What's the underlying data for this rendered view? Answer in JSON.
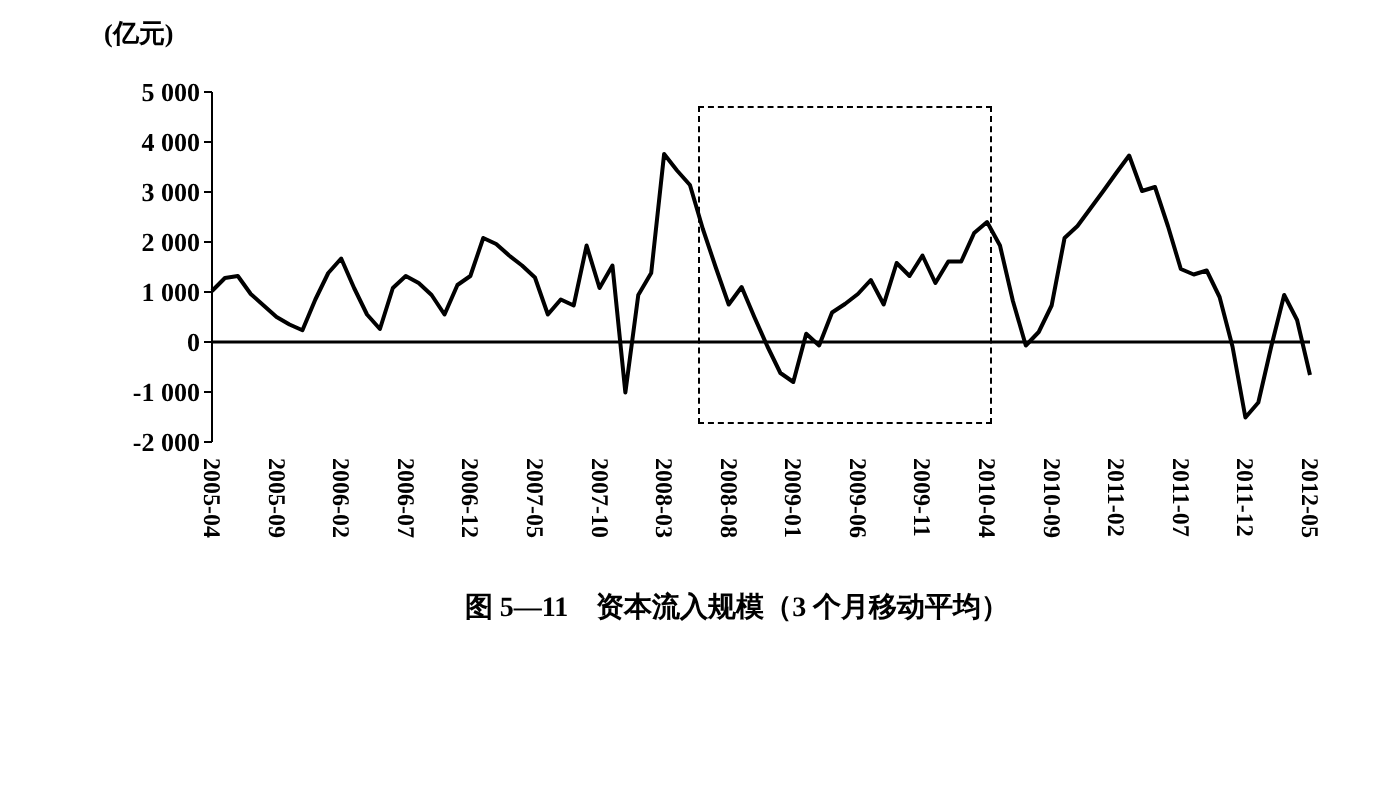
{
  "chart_data": {
    "type": "line",
    "title": "图 5—11　资本流入规模（3 个月移动平均）",
    "ylabel": "(亿元)",
    "categories": [
      "2005-04",
      null,
      null,
      null,
      null,
      "2005-09",
      null,
      null,
      null,
      null,
      "2006-02",
      null,
      null,
      null,
      null,
      "2006-07",
      null,
      null,
      null,
      null,
      "2006-12",
      null,
      null,
      null,
      null,
      "2007-05",
      null,
      null,
      null,
      null,
      "2007-10",
      null,
      null,
      null,
      null,
      "2008-03",
      null,
      null,
      null,
      null,
      "2008-08",
      null,
      null,
      null,
      null,
      "2009-01",
      null,
      null,
      null,
      null,
      "2009-06",
      null,
      null,
      null,
      null,
      "2009-11",
      null,
      null,
      null,
      null,
      "2010-04",
      null,
      null,
      null,
      null,
      "2010-09",
      null,
      null,
      null,
      null,
      "2011-02",
      null,
      null,
      null,
      null,
      "2011-07",
      null,
      null,
      null,
      null,
      "2011-12",
      null,
      null,
      null,
      null,
      "2012-05"
    ],
    "series": [
      {
        "color": "#000000",
        "values": [
          1020,
          1280,
          1320,
          960,
          730,
          500,
          350,
          235,
          850,
          1380,
          1670,
          1080,
          550,
          260,
          1080,
          1320,
          1180,
          940,
          550,
          1140,
          1320,
          2080,
          1960,
          1730,
          1530,
          1290,
          550,
          850,
          730,
          1930,
          1080,
          1530,
          -1010,
          940,
          1380,
          3760,
          3430,
          3140,
          2260,
          1490,
          750,
          1100,
          490,
          -90,
          -620,
          -800,
          165,
          -70,
          590,
          760,
          960,
          1240,
          750,
          1580,
          1320,
          1730,
          1180,
          1610,
          1610,
          2180,
          2400,
          1930,
          820,
          -70,
          200,
          730,
          2080,
          2320,
          2670,
          3020,
          3380,
          3730,
          3020,
          3100,
          2320,
          1460,
          1350,
          1430,
          900,
          -90,
          -1510,
          -1210,
          -90,
          940,
          440,
          -660
        ]
      }
    ],
    "ylim": [
      -2000,
      5000
    ],
    "yticks": [
      {
        "value": -2000,
        "label": "-2 000"
      },
      {
        "value": -1000,
        "label": "-1 000"
      },
      0,
      {
        "value": 1000,
        "label": "1 000"
      },
      {
        "value": 2000,
        "label": "2 000"
      },
      {
        "value": 3000,
        "label": "3 000"
      },
      {
        "value": 4000,
        "label": "4 000"
      },
      {
        "value": 5000,
        "label": "5 000"
      }
    ],
    "ref_lines": [
      {
        "axis": "y",
        "value": 0,
        "color": "#000000"
      }
    ],
    "grid": false,
    "legend": false,
    "marker": "none",
    "line_style": "solid"
  }
}
